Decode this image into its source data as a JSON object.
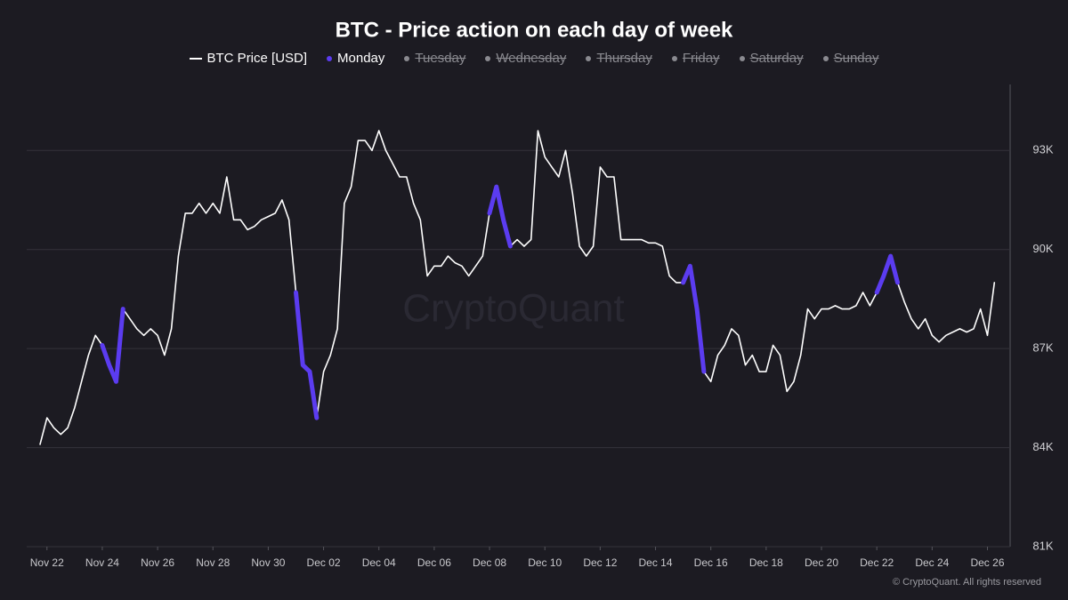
{
  "chart_data": {
    "type": "line",
    "title": "BTC - Price action on each day of week",
    "watermark": "CryptoQuant",
    "footer": "© CryptoQuant. All rights reserved",
    "categories": [
      null,
      "Nov 22",
      null,
      null,
      null,
      null,
      null,
      null,
      null,
      "Nov 24",
      null,
      null,
      null,
      null,
      null,
      null,
      null,
      "Nov 26",
      null,
      null,
      null,
      null,
      null,
      null,
      null,
      "Nov 28",
      null,
      null,
      null,
      null,
      null,
      null,
      null,
      "Nov 30",
      null,
      null,
      null,
      null,
      null,
      null,
      null,
      "Dec 02",
      null,
      null,
      null,
      null,
      null,
      null,
      null,
      "Dec 04",
      null,
      null,
      null,
      null,
      null,
      null,
      null,
      "Dec 06",
      null,
      null,
      null,
      null,
      null,
      null,
      null,
      "Dec 08",
      null,
      null,
      null,
      null,
      null,
      null,
      null,
      "Dec 10",
      null,
      null,
      null,
      null,
      null,
      null,
      null,
      "Dec 12",
      null,
      null,
      null,
      null,
      null,
      null,
      null,
      "Dec 14",
      null,
      null,
      null,
      null,
      null,
      null,
      null,
      "Dec 16",
      null,
      null,
      null,
      null,
      null,
      null,
      null,
      "Dec 18",
      null,
      null,
      null,
      null,
      null,
      null,
      null,
      "Dec 20",
      null,
      null,
      null,
      null,
      null,
      null,
      null,
      "Dec 22",
      null,
      null,
      null,
      null,
      null,
      null,
      null,
      "Dec 24",
      null,
      null,
      null,
      null,
      null,
      null,
      null,
      "Dec 26",
      null
    ],
    "series": [
      {
        "name": "BTC Price [USD]",
        "color": "#ffffff",
        "values": [
          84100,
          84900,
          84600,
          84400,
          84600,
          85200,
          86000,
          86800,
          87400,
          87100,
          86500,
          86000,
          88200,
          87900,
          87600,
          87400,
          87600,
          87400,
          86800,
          87600,
          89800,
          91100,
          91100,
          91400,
          91100,
          91400,
          91100,
          92200,
          90900,
          90900,
          90600,
          90700,
          90900,
          91000,
          91100,
          91500,
          90900,
          88700,
          86500,
          86300,
          84900,
          86300,
          86800,
          87600,
          91400,
          91900,
          93300,
          93300,
          93000,
          93600,
          93000,
          92600,
          92200,
          92200,
          91400,
          90900,
          89200,
          89500,
          89500,
          89800,
          89600,
          89500,
          89200,
          89500,
          89800,
          91100,
          91900,
          90900,
          90100,
          90300,
          90100,
          90300,
          93600,
          92800,
          92500,
          92200,
          93000,
          91700,
          90100,
          89800,
          90100,
          92500,
          92200,
          92200,
          90300,
          90300,
          90300,
          90300,
          90200,
          90200,
          90100,
          89200,
          89000,
          89000,
          89500,
          88200,
          86300,
          86000,
          86800,
          87100,
          87600,
          87400,
          86500,
          86800,
          86300,
          86300,
          87100,
          86800,
          85700,
          86000,
          86800,
          88200,
          87900,
          88200,
          88200,
          88300,
          88200,
          88200,
          88300,
          88700,
          88300,
          88700,
          89200,
          89800,
          89000,
          88400,
          87900,
          87600,
          87900,
          87400,
          87200,
          87400,
          87500,
          87600,
          87500,
          87600,
          88200,
          87400,
          89000
        ]
      },
      {
        "name": "Monday",
        "color": "#5b3cf0",
        "values": [
          null,
          null,
          null,
          null,
          null,
          null,
          null,
          null,
          null,
          87100,
          86500,
          86000,
          88200,
          null,
          null,
          null,
          null,
          null,
          null,
          null,
          null,
          null,
          null,
          null,
          null,
          null,
          null,
          null,
          null,
          null,
          null,
          null,
          null,
          null,
          null,
          null,
          null,
          88700,
          86500,
          86300,
          84900,
          null,
          null,
          null,
          null,
          null,
          null,
          null,
          null,
          null,
          null,
          null,
          null,
          null,
          null,
          null,
          null,
          null,
          null,
          null,
          null,
          null,
          null,
          null,
          null,
          91100,
          91900,
          90900,
          90100,
          null,
          null,
          null,
          null,
          null,
          null,
          null,
          null,
          null,
          null,
          null,
          null,
          null,
          null,
          null,
          null,
          null,
          null,
          null,
          null,
          null,
          null,
          null,
          null,
          89000,
          89500,
          88200,
          86300,
          null,
          null,
          null,
          null,
          null,
          null,
          null,
          null,
          null,
          null,
          null,
          null,
          null,
          null,
          null,
          null,
          null,
          null,
          null,
          null,
          null,
          null,
          null,
          null,
          88700,
          89200,
          89800,
          89000,
          null,
          null,
          null,
          null,
          null,
          null,
          null,
          null,
          null,
          null,
          null,
          null,
          null,
          null
        ]
      }
    ],
    "hidden_legend": [
      "Tuesday",
      "Wednesday",
      "Thursday",
      "Friday",
      "Saturday",
      "Sunday"
    ],
    "ylim": [
      81000,
      95000
    ],
    "yticks": [
      {
        "value": 81000,
        "label": "81K"
      },
      {
        "value": 84000,
        "label": "84K"
      },
      {
        "value": 87000,
        "label": "87K"
      },
      {
        "value": 90000,
        "label": "90K"
      },
      {
        "value": 93000,
        "label": "93K"
      }
    ],
    "grid": true
  }
}
